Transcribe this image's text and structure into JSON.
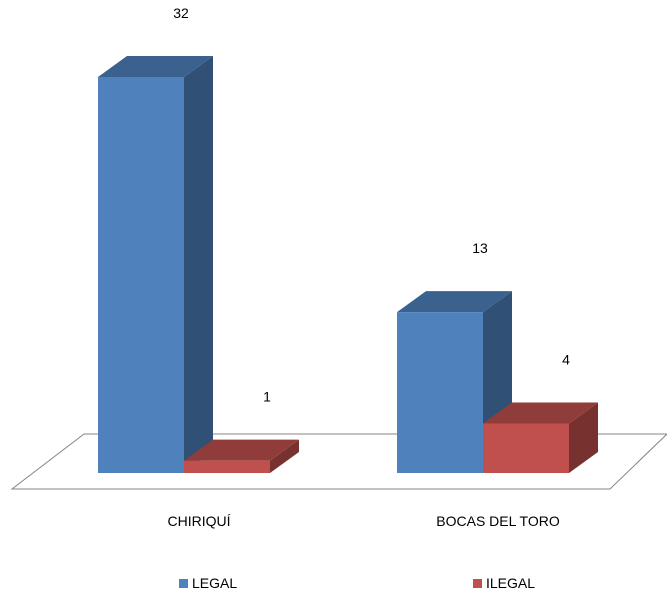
{
  "chart_data": {
    "type": "bar",
    "style": "3d-clustered-column",
    "categories": [
      "CHIRIQUÍ",
      "BOCAS DEL TORO"
    ],
    "series": [
      {
        "name": "LEGAL",
        "values": [
          32,
          13
        ],
        "color": "#4F81BD"
      },
      {
        "name": "ILEGAL",
        "values": [
          1,
          4
        ],
        "color": "#C0504D"
      }
    ],
    "title": "",
    "xlabel": "",
    "ylabel": "",
    "ylim": [
      0,
      32
    ],
    "grid": false,
    "legend_position": "bottom",
    "data_labels": true
  }
}
